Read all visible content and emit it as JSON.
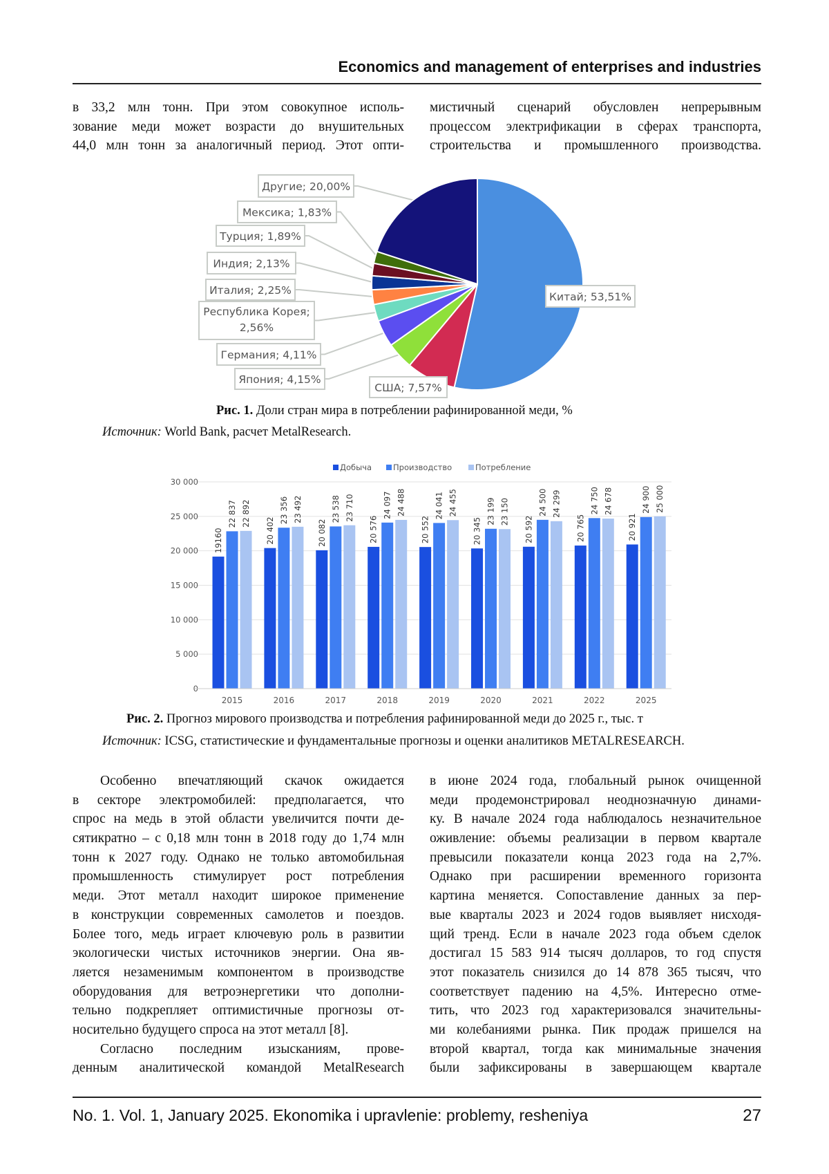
{
  "header": {
    "title": "Economics and management of enterprises and industries"
  },
  "top_text": {
    "left": [
      {
        "indent": false,
        "end": false,
        "lines": [
          "в 33,2 млн тонн. При этом совокупное исполь-",
          "зование меди может возрасти до внушительных",
          "44,0 млн тонн за аналогичный период. Этот опти-"
        ]
      }
    ],
    "right": [
      {
        "indent": false,
        "end": false,
        "lines": [
          "мистичный сценарий обусловлен непрерывным",
          "процессом электрификации в сферах транспорта,",
          "строительства и промышленного производства."
        ]
      }
    ]
  },
  "figure1": {
    "caption_label": "Рис. 1.",
    "caption_text": " Доли стран мира в потреблении рафинированной меди, %",
    "source_label": "Источник:",
    "source_text": " World Bank, расчет MetalResearch."
  },
  "figure2": {
    "caption_label": "Рис. 2.",
    "caption_text": " Прогноз мирового производства и потребления рафинированной меди до 2025 г., тыс. т",
    "source_label": "Источник:",
    "source_text": " ICSG, статистические и фундаментальные прогнозы и оценки аналитиков METALRESEARCH."
  },
  "chart_data": [
    {
      "type": "pie",
      "title": "",
      "slices": [
        {
          "label": "Китай",
          "value": 53.51,
          "text": "Китай; 53,51%",
          "color": "#4a8fe0"
        },
        {
          "label": "США",
          "value": 7.57,
          "text": "США; 7,57%",
          "color": "#d22b52"
        },
        {
          "label": "Япония",
          "value": 4.15,
          "text": "Япония; 4,15%",
          "color": "#8fe03a"
        },
        {
          "label": "Германия",
          "value": 4.11,
          "text": "Германия; 4,11%",
          "color": "#5b4ef0"
        },
        {
          "label": "Республика Корея",
          "value": 2.56,
          "text": [
            "Республика Корея;",
            "2,56%"
          ],
          "color": "#6edbc0"
        },
        {
          "label": "Италия",
          "value": 2.25,
          "text": "Италия; 2,25%",
          "color": "#ff8242"
        },
        {
          "label": "Индия",
          "value": 2.13,
          "text": "Индия; 2,13%",
          "color": "#0a3595"
        },
        {
          "label": "Турция",
          "value": 1.89,
          "text": "Турция; 1,89%",
          "color": "#6b0f22"
        },
        {
          "label": "Мексика",
          "value": 1.83,
          "text": "Мексика; 1,83%",
          "color": "#3f6e0a"
        },
        {
          "label": "Другие",
          "value": 20.0,
          "text": "Другие; 20,00%",
          "color": "#14137a"
        }
      ]
    },
    {
      "type": "bar",
      "title": "",
      "categories": [
        "2015",
        "2016",
        "2017",
        "2018",
        "2019",
        "2020",
        "2021",
        "2022",
        "2025"
      ],
      "series": [
        {
          "name": "Добыча",
          "color": "#1a4fe0",
          "values": [
            19160,
            20402,
            20082,
            20576,
            20552,
            20345,
            20592,
            20765,
            20921
          ],
          "labels": [
            "19160",
            "20 402",
            "20 082",
            "20 576",
            "20 552",
            "20 345",
            "20 592",
            "20 765",
            "20 921"
          ]
        },
        {
          "name": "Производство",
          "color": "#3f7ef2",
          "values": [
            22837,
            23356,
            23538,
            24097,
            24041,
            23199,
            24500,
            24750,
            24900
          ],
          "labels": [
            "22 837",
            "23 356",
            "23 538",
            "24 097",
            "24 041",
            "23 199",
            "24 500",
            "24 750",
            "24 900"
          ]
        },
        {
          "name": "Потребление",
          "color": "#a9c4f2",
          "values": [
            22892,
            23492,
            23710,
            24488,
            24455,
            23150,
            24299,
            24678,
            25000
          ],
          "labels": [
            "22 892",
            "23 492",
            "23 710",
            "24 488",
            "24 455",
            "23 150",
            "24 299",
            "24 678",
            "25 000"
          ]
        }
      ],
      "yticks": [
        0,
        5000,
        10000,
        15000,
        20000,
        25000,
        30000
      ],
      "ytick_labels": [
        "0",
        "5 000",
        "10 000",
        "15 000",
        "20 000",
        "25 000",
        "30 000"
      ],
      "ylim": [
        0,
        30000
      ],
      "grid": true,
      "legend": "top-center",
      "xlabel": "",
      "ylabel": ""
    }
  ],
  "bottom_text": {
    "left": [
      {
        "indent": true,
        "end": true,
        "lines": [
          "Особенно впечатляющий скачок ожидается",
          "в секторе электромобилей: предполагается, что",
          "спрос на медь в этой области увеличится почти де-",
          "сятикратно – с 0,18 млн тонн в 2018 году до 1,74 млн",
          "тонн к 2027 году. Однако не только автомобильная",
          "промышленность стимулирует рост потребления",
          "меди. Этот металл находит широкое применение",
          "в конструкции современных самолетов и поездов.",
          "Более того, медь играет ключевую роль в развитии",
          "экологически чистых источников энергии. Она яв-",
          "ляется незаменимым компонентом в производстве",
          "оборудования для ветроэнергетики что дополни-",
          "тельно подкрепляет оптимистичные прогнозы от-",
          "носительно будущего спроса на этот металл [8]."
        ]
      },
      {
        "indent": true,
        "end": false,
        "lines": [
          "Согласно последним изысканиям, прове-",
          "денным аналитической командой MetalResearch"
        ]
      }
    ],
    "right": [
      {
        "indent": false,
        "end": false,
        "lines": [
          "в июне 2024 года, глобальный рынок очищенной",
          "меди продемонстрировал неоднозначную динами-",
          "ку. В начале 2024 года наблюдалось незначительное",
          "оживление: объемы реализации в первом квартале",
          "превысили показатели конца 2023 года на 2,7%.",
          "Однако при расширении временного горизонта",
          "картина меняется. Сопоставление данных за пер-",
          "вые кварталы 2023 и 2024 годов выявляет нисходя-",
          "щий тренд. Если в начале 2023 года объем сделок",
          "достигал 15 583 914 тысяч долларов, то год спустя",
          "этот показатель снизился до 14 878 365 тысяч, что",
          "соответствует падению на 4,5%. Интересно отме-",
          "тить, что 2023 год характеризовался значительны-",
          "ми колебаниями рынка. Пик продаж пришелся на",
          "второй квартал, тогда как минимальные значения",
          "были зафиксированы в завершающем квартале"
        ]
      }
    ]
  },
  "footer": {
    "citation": "No. 1. Vol. 1, January 2025. Ekonomika i upravlenie: problemy, resheniya",
    "page_number": "27"
  }
}
